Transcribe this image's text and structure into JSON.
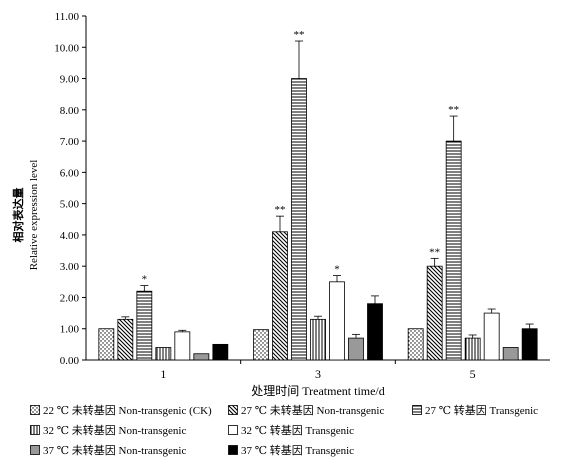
{
  "chart_data": {
    "type": "bar",
    "ylabel_line1": "相对表达量",
    "ylabel_line2": "Relative expression level",
    "xlabel": "处理时间  Treatment time/d",
    "ylim": [
      0,
      11
    ],
    "yticks": [
      "0.00",
      "1.00",
      "2.00",
      "3.00",
      "4.00",
      "5.00",
      "6.00",
      "7.00",
      "8.00",
      "9.00",
      "10.00",
      "11.00"
    ],
    "categories": [
      "1",
      "3",
      "5"
    ],
    "series": [
      {
        "name": "22 ℃ 未转基因  Non-transgenic (CK)",
        "pattern": "dots",
        "values": [
          1.0,
          0.97,
          1.0
        ],
        "errors": [
          0,
          0,
          0
        ],
        "sig": [
          "",
          "",
          ""
        ]
      },
      {
        "name": "27 ℃ 未转基因  Non-transgenic",
        "pattern": "diag",
        "values": [
          1.3,
          4.1,
          3.0
        ],
        "errors": [
          0.08,
          0.5,
          0.25
        ],
        "sig": [
          "",
          "**",
          "**"
        ]
      },
      {
        "name": "27 ℃ 转基因  Transgenic",
        "pattern": "hlines",
        "values": [
          2.2,
          9.0,
          7.0
        ],
        "errors": [
          0.18,
          1.2,
          0.8
        ],
        "sig": [
          "*",
          "**",
          "**"
        ]
      },
      {
        "name": "32 ℃ 未转基因  Non-transgenic",
        "pattern": "vlines",
        "values": [
          0.4,
          1.3,
          0.7
        ],
        "errors": [
          0,
          0.1,
          0.1
        ],
        "sig": [
          "",
          "",
          ""
        ]
      },
      {
        "name": "32 ℃ 转基因  Transgenic",
        "pattern": "white",
        "values": [
          0.9,
          2.5,
          1.5
        ],
        "errors": [
          0.05,
          0.2,
          0.13
        ],
        "sig": [
          "",
          "*",
          ""
        ]
      },
      {
        "name": "37 ℃ 未转基因  Non-transgenic",
        "pattern": "gray",
        "values": [
          0.2,
          0.7,
          0.4
        ],
        "errors": [
          0,
          0.12,
          0
        ],
        "sig": [
          "",
          "",
          ""
        ]
      },
      {
        "name": "37 ℃ 转基因  Transgenic",
        "pattern": "black",
        "values": [
          0.5,
          1.8,
          1.0
        ],
        "errors": [
          0,
          0.25,
          0.15
        ],
        "sig": [
          "",
          "",
          ""
        ]
      }
    ]
  }
}
